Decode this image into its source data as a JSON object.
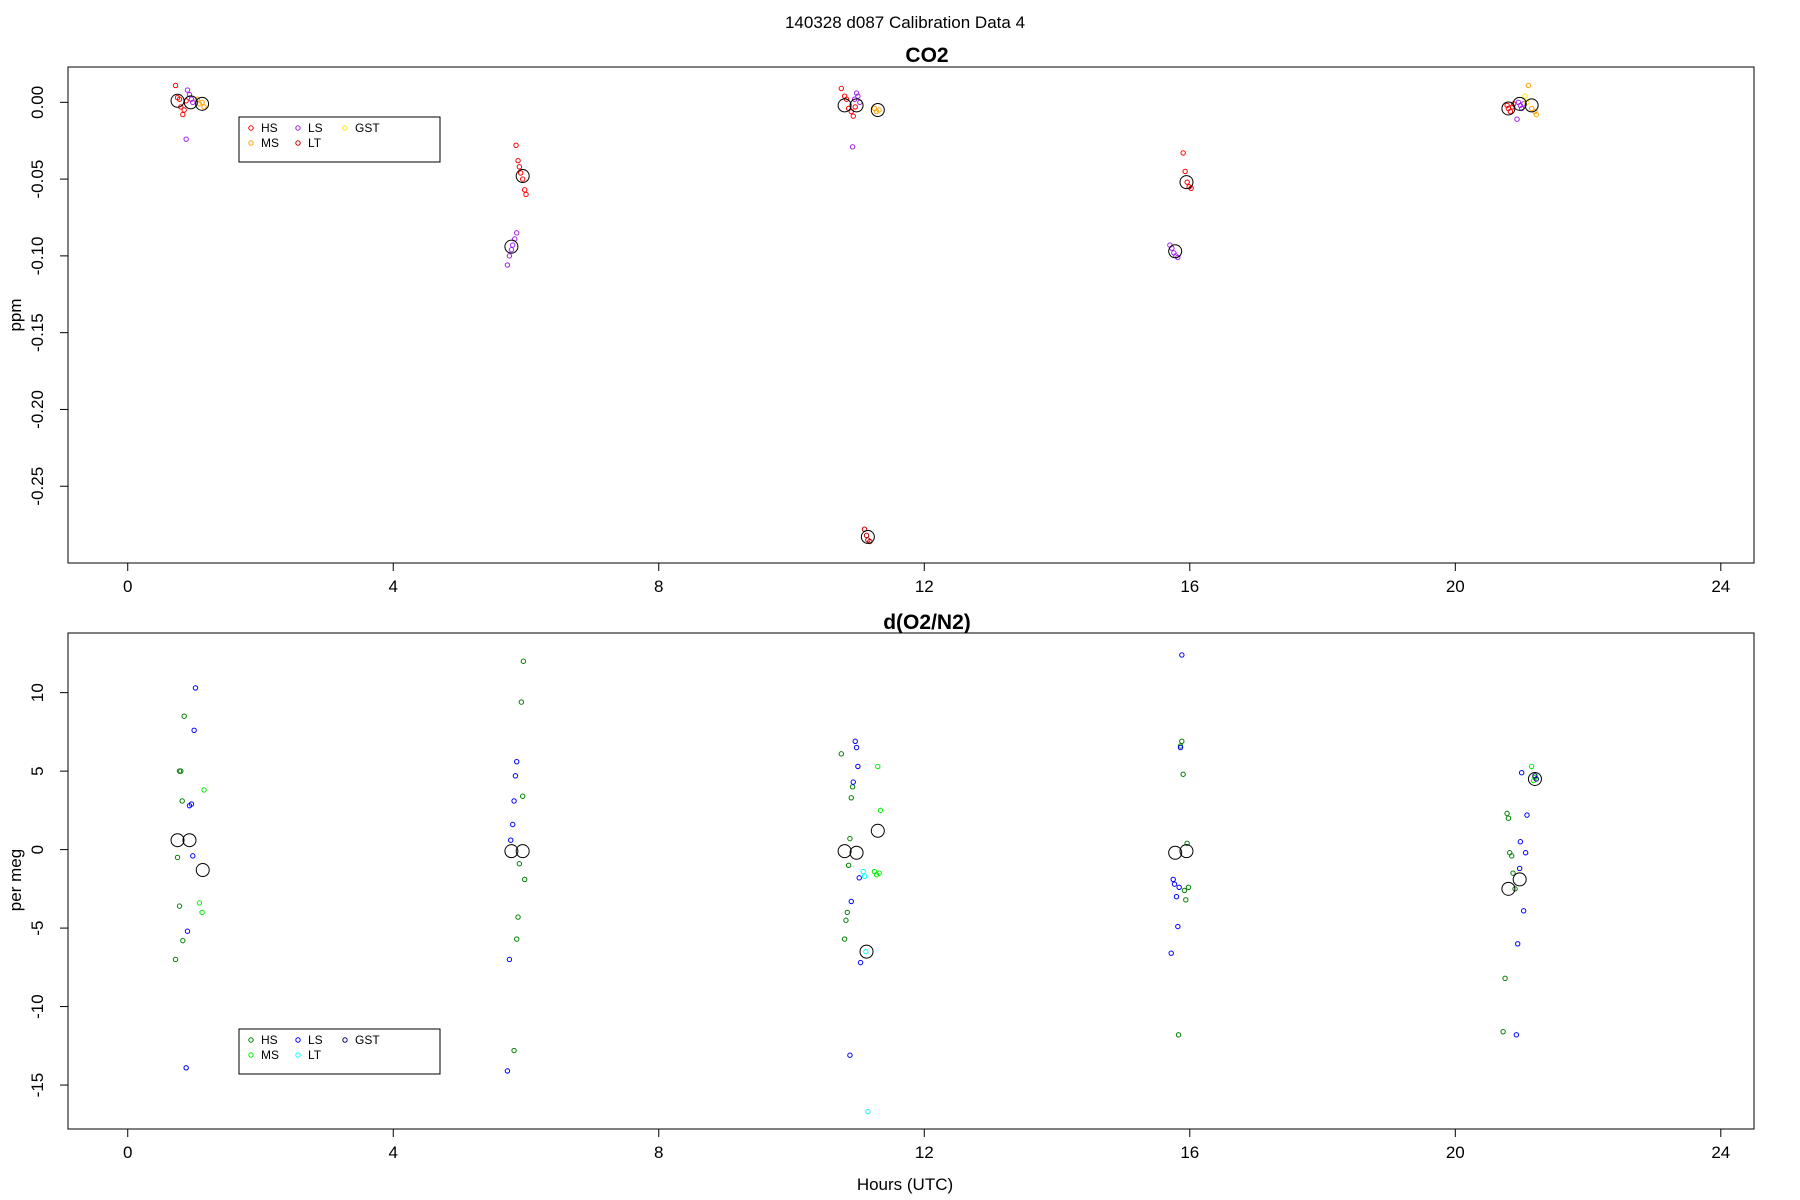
{
  "page_title": "140328   d087   Calibration Data 4",
  "x_axis_label": "Hours (UTC)",
  "chart_data": [
    {
      "id": "co2",
      "type": "scatter",
      "title": "CO2",
      "xlabel": "",
      "ylabel": "ppm",
      "xlim": [
        -0.9,
        24.5
      ],
      "ylim": [
        -0.3,
        0.023
      ],
      "xticks": [
        0,
        4,
        8,
        12,
        16,
        20,
        24
      ],
      "xtick_labels": [
        "0",
        "4",
        "8",
        "12",
        "16",
        "20",
        "24"
      ],
      "yticks": [
        0.0,
        -0.05,
        -0.1,
        -0.15,
        -0.2,
        -0.25
      ],
      "ytick_labels": [
        "0.00",
        "-0.05",
        "-0.10",
        "-0.15",
        "-0.20",
        "-0.25"
      ],
      "grid": false,
      "legend_position": "upper-left",
      "legend": [
        {
          "name": "HS",
          "color": "#ff0000"
        },
        {
          "name": "LS",
          "color": "#a020f0"
        },
        {
          "name": "GST",
          "color": "#ffe600"
        },
        {
          "name": "MS",
          "color": "#ffa500"
        },
        {
          "name": "LT",
          "color": "#c00000"
        }
      ],
      "series": [
        {
          "name": "HS",
          "color": "#ff0000",
          "points": [
            [
              0.72,
              0.011
            ],
            [
              0.75,
              0.003
            ],
            [
              0.78,
              0.002
            ],
            [
              0.8,
              -0.003
            ],
            [
              0.83,
              -0.008
            ],
            [
              0.85,
              -0.005
            ],
            [
              0.88,
              0.001
            ],
            [
              10.75,
              0.009
            ],
            [
              10.8,
              0.004
            ],
            [
              10.83,
              0.002
            ],
            [
              10.86,
              -0.004
            ],
            [
              10.9,
              -0.006
            ],
            [
              10.93,
              -0.009
            ],
            [
              10.96,
              -0.003
            ],
            [
              5.85,
              -0.028
            ],
            [
              5.88,
              -0.038
            ],
            [
              5.9,
              -0.042
            ],
            [
              5.92,
              -0.046
            ],
            [
              5.95,
              -0.05
            ],
            [
              5.98,
              -0.057
            ],
            [
              6.0,
              -0.06
            ],
            [
              15.9,
              -0.033
            ],
            [
              15.93,
              -0.045
            ],
            [
              15.96,
              -0.052
            ],
            [
              15.99,
              -0.055
            ],
            [
              16.02,
              -0.056
            ],
            [
              20.78,
              -0.002
            ],
            [
              20.8,
              -0.004
            ],
            [
              20.83,
              -0.006
            ],
            [
              20.86,
              -0.003
            ],
            [
              20.88,
              -0.001
            ]
          ]
        },
        {
          "name": "LS",
          "color": "#a020f0",
          "points": [
            [
              0.9,
              0.008
            ],
            [
              0.93,
              0.005
            ],
            [
              0.96,
              0.002
            ],
            [
              0.98,
              0.0
            ],
            [
              0.88,
              -0.024
            ],
            [
              10.95,
              0.002
            ],
            [
              10.98,
              0.006
            ],
            [
              11.0,
              0.004
            ],
            [
              11.03,
              0.0
            ],
            [
              10.92,
              -0.029
            ],
            [
              5.72,
              -0.106
            ],
            [
              5.75,
              -0.1
            ],
            [
              5.78,
              -0.096
            ],
            [
              5.8,
              -0.093
            ],
            [
              5.83,
              -0.089
            ],
            [
              5.86,
              -0.085
            ],
            [
              15.7,
              -0.093
            ],
            [
              15.73,
              -0.095
            ],
            [
              15.76,
              -0.098
            ],
            [
              15.79,
              -0.1
            ],
            [
              15.82,
              -0.101
            ],
            [
              20.95,
              0.0
            ],
            [
              20.98,
              -0.002
            ],
            [
              21.0,
              -0.004
            ],
            [
              21.03,
              -0.001
            ],
            [
              20.93,
              -0.011
            ]
          ]
        },
        {
          "name": "MS",
          "color": "#ffa500",
          "points": [
            [
              1.05,
              0.002
            ],
            [
              1.08,
              -0.001
            ],
            [
              1.12,
              0.0
            ],
            [
              1.15,
              -0.003
            ],
            [
              11.25,
              -0.004
            ],
            [
              11.28,
              -0.006
            ],
            [
              11.32,
              -0.005
            ],
            [
              21.1,
              0.011
            ],
            [
              21.15,
              -0.004
            ],
            [
              21.2,
              -0.006
            ],
            [
              21.22,
              -0.008
            ]
          ]
        },
        {
          "name": "LT",
          "color": "#c00000",
          "points": [
            [
              11.1,
              -0.278
            ],
            [
              11.13,
              -0.282
            ],
            [
              11.15,
              -0.285
            ],
            [
              11.18,
              -0.286
            ]
          ]
        },
        {
          "name": "GST",
          "color": "#ffe600",
          "points": [
            [
              21.05,
              0.004
            ],
            [
              21.08,
              0.0
            ]
          ]
        }
      ],
      "means": [
        [
          0.75,
          0.001
        ],
        [
          0.95,
          0.0
        ],
        [
          1.12,
          -0.001
        ],
        [
          10.8,
          -0.002
        ],
        [
          10.98,
          -0.002
        ],
        [
          11.3,
          -0.005
        ],
        [
          5.78,
          -0.094
        ],
        [
          5.95,
          -0.048
        ],
        [
          11.15,
          -0.283
        ],
        [
          15.78,
          -0.097
        ],
        [
          15.95,
          -0.052
        ],
        [
          20.8,
          -0.004
        ],
        [
          20.97,
          -0.001
        ],
        [
          21.15,
          -0.002
        ]
      ]
    },
    {
      "id": "o2n2",
      "type": "scatter",
      "title": "d(O2/N2)",
      "xlabel": "Hours (UTC)",
      "ylabel": "per meg",
      "xlim": [
        -0.9,
        24.5
      ],
      "ylim": [
        -17.8,
        13.8
      ],
      "xticks": [
        0,
        4,
        8,
        12,
        16,
        20,
        24
      ],
      "xtick_labels": [
        "0",
        "4",
        "8",
        "12",
        "16",
        "20",
        "24"
      ],
      "yticks": [
        10,
        5,
        0,
        -5,
        -10,
        -15
      ],
      "ytick_labels": [
        "10",
        "5",
        "0",
        "-5",
        "-10",
        "-15"
      ],
      "grid": false,
      "legend_position": "lower-left",
      "legend": [
        {
          "name": "HS",
          "color": "#008000"
        },
        {
          "name": "LS",
          "color": "#0000ff"
        },
        {
          "name": "GST",
          "color": "#000080"
        },
        {
          "name": "MS",
          "color": "#00ee00"
        },
        {
          "name": "LT",
          "color": "#00ffff"
        }
      ],
      "series": [
        {
          "name": "HS",
          "color": "#008000",
          "points": [
            [
              0.72,
              -7.0
            ],
            [
              0.75,
              -0.5
            ],
            [
              0.78,
              -3.6
            ],
            [
              0.78,
              5.0
            ],
            [
              0.8,
              5.0
            ],
            [
              0.82,
              3.1
            ],
            [
              0.83,
              -5.8
            ],
            [
              0.85,
              8.5
            ],
            [
              5.82,
              -12.8
            ],
            [
              5.86,
              -5.7
            ],
            [
              5.88,
              -4.3
            ],
            [
              5.9,
              -0.9
            ],
            [
              5.93,
              9.4
            ],
            [
              5.95,
              3.4
            ],
            [
              5.96,
              12.0
            ],
            [
              5.98,
              -1.9
            ],
            [
              10.75,
              6.1
            ],
            [
              10.8,
              -5.7
            ],
            [
              10.82,
              -4.5
            ],
            [
              10.84,
              -4.0
            ],
            [
              10.86,
              -1.0
            ],
            [
              10.88,
              0.7
            ],
            [
              10.9,
              3.3
            ],
            [
              10.92,
              4.0
            ],
            [
              15.83,
              -11.8
            ],
            [
              15.86,
              6.6
            ],
            [
              15.88,
              6.9
            ],
            [
              15.9,
              4.8
            ],
            [
              15.92,
              -2.6
            ],
            [
              15.94,
              -3.2
            ],
            [
              15.96,
              0.4
            ],
            [
              15.98,
              -2.4
            ],
            [
              20.72,
              -11.6
            ],
            [
              20.75,
              -8.2
            ],
            [
              20.78,
              2.3
            ],
            [
              20.8,
              2.0
            ],
            [
              20.82,
              -0.2
            ],
            [
              20.85,
              -0.4
            ],
            [
              20.87,
              -1.5
            ],
            [
              20.9,
              -2.5
            ]
          ]
        },
        {
          "name": "LS",
          "color": "#0000ff",
          "points": [
            [
              0.88,
              -13.9
            ],
            [
              0.9,
              -5.2
            ],
            [
              0.93,
              2.8
            ],
            [
              0.96,
              2.9
            ],
            [
              0.98,
              -0.4
            ],
            [
              1.0,
              7.6
            ],
            [
              1.02,
              10.3
            ],
            [
              5.72,
              -14.1
            ],
            [
              5.75,
              -7.0
            ],
            [
              5.77,
              0.6
            ],
            [
              5.8,
              1.6
            ],
            [
              5.82,
              3.1
            ],
            [
              5.84,
              4.7
            ],
            [
              5.86,
              5.6
            ],
            [
              10.88,
              -13.1
            ],
            [
              10.9,
              -3.3
            ],
            [
              10.93,
              4.3
            ],
            [
              10.96,
              6.9
            ],
            [
              10.98,
              6.5
            ],
            [
              11.0,
              5.3
            ],
            [
              11.02,
              -1.8
            ],
            [
              11.04,
              -7.2
            ],
            [
              15.72,
              -6.6
            ],
            [
              15.75,
              -1.9
            ],
            [
              15.77,
              -2.2
            ],
            [
              15.8,
              -3.0
            ],
            [
              15.82,
              -4.9
            ],
            [
              15.84,
              -2.4
            ],
            [
              15.86,
              6.5
            ],
            [
              15.88,
              12.4
            ],
            [
              20.92,
              -11.8
            ],
            [
              20.94,
              -6.0
            ],
            [
              20.97,
              -1.2
            ],
            [
              20.98,
              0.5
            ],
            [
              21.0,
              4.9
            ],
            [
              21.03,
              -3.9
            ],
            [
              21.06,
              -0.2
            ],
            [
              21.08,
              2.2
            ]
          ]
        },
        {
          "name": "MS",
          "color": "#00ee00",
          "points": [
            [
              1.08,
              -3.4
            ],
            [
              1.12,
              -4.0
            ],
            [
              1.15,
              3.8
            ],
            [
              11.25,
              -1.4
            ],
            [
              11.28,
              -1.6
            ],
            [
              11.3,
              5.3
            ],
            [
              11.32,
              -1.5
            ],
            [
              11.34,
              2.5
            ],
            [
              21.15,
              5.3
            ],
            [
              21.18,
              4.4
            ],
            [
              21.2,
              4.6
            ]
          ]
        },
        {
          "name": "LT",
          "color": "#00ffff",
          "points": [
            [
              11.08,
              -1.4
            ],
            [
              11.1,
              -1.7
            ],
            [
              11.12,
              -6.5
            ],
            [
              11.15,
              -16.7
            ]
          ]
        },
        {
          "name": "GST",
          "color": "#000080",
          "points": [
            [
              21.2,
              4.7
            ],
            [
              21.22,
              4.5
            ]
          ]
        }
      ],
      "means": [
        [
          0.75,
          0.6
        ],
        [
          0.93,
          0.6
        ],
        [
          1.13,
          -1.3
        ],
        [
          5.78,
          -0.1
        ],
        [
          5.95,
          -0.1
        ],
        [
          10.8,
          -0.1
        ],
        [
          10.98,
          -0.2
        ],
        [
          11.3,
          1.2
        ],
        [
          11.13,
          -6.5
        ],
        [
          15.78,
          -0.2
        ],
        [
          15.95,
          -0.1
        ],
        [
          20.8,
          -2.5
        ],
        [
          20.97,
          -1.9
        ],
        [
          21.2,
          4.5
        ]
      ]
    }
  ]
}
